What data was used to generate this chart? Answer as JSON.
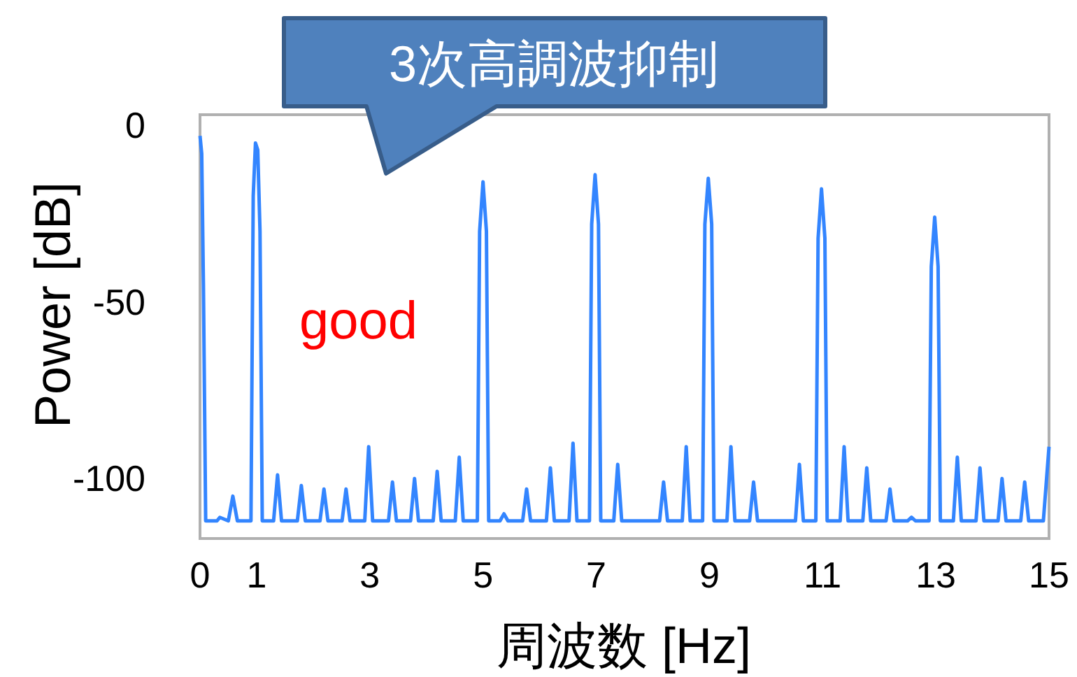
{
  "chart_data": {
    "type": "line",
    "xlabel": "周波数  [Hz]",
    "ylabel": "Power [dB]",
    "annotations": [
      "3次高調波抑制",
      "good"
    ],
    "xlim": [
      0,
      15
    ],
    "ylim": [
      -117,
      3
    ],
    "xticks": [
      0,
      1,
      3,
      5,
      7,
      9,
      11,
      13,
      15
    ],
    "yticks": [
      0,
      -50,
      -100
    ],
    "color": "#3385ff",
    "x": [
      0,
      0.03,
      0.06,
      0.1,
      0.3,
      0.35,
      0.5,
      0.58,
      0.66,
      0.9,
      0.94,
      0.98,
      1.02,
      1.06,
      1.1,
      1.3,
      1.37,
      1.44,
      1.72,
      1.79,
      1.86,
      2.12,
      2.19,
      2.26,
      2.51,
      2.58,
      2.65,
      2.91,
      2.98,
      3.05,
      3.33,
      3.4,
      3.47,
      3.72,
      3.79,
      3.86,
      4.12,
      4.19,
      4.26,
      4.51,
      4.58,
      4.65,
      4.9,
      4.94,
      5.0,
      5.06,
      5.1,
      5.3,
      5.37,
      5.44,
      5.7,
      5.77,
      5.84,
      6.12,
      6.19,
      6.26,
      6.52,
      6.59,
      6.66,
      6.88,
      6.92,
      6.98,
      7.04,
      7.08,
      7.31,
      7.38,
      7.45,
      8.12,
      8.19,
      8.26,
      8.52,
      8.59,
      8.66,
      8.88,
      8.92,
      8.98,
      9.04,
      9.08,
      9.31,
      9.38,
      9.45,
      9.71,
      9.78,
      9.85,
      10.52,
      10.59,
      10.66,
      10.88,
      10.92,
      10.98,
      11.04,
      11.08,
      11.31,
      11.38,
      11.45,
      11.71,
      11.78,
      11.85,
      12.12,
      12.19,
      12.26,
      12.5,
      12.57,
      12.64,
      12.88,
      12.92,
      12.98,
      13.04,
      13.08,
      13.31,
      13.38,
      13.45,
      13.71,
      13.78,
      13.85,
      14.1,
      14.17,
      14.24,
      14.5,
      14.57,
      14.64,
      14.9,
      15
    ],
    "values": [
      -3,
      -8,
      -45,
      -112,
      -112,
      -111,
      -112,
      -105,
      -112,
      -112,
      -20,
      -5,
      -7,
      -30,
      -112,
      -112,
      -99,
      -112,
      -112,
      -102,
      -112,
      -112,
      -103,
      -112,
      -112,
      -103,
      -112,
      -112,
      -91,
      -112,
      -112,
      -101,
      -112,
      -112,
      -100,
      -112,
      -112,
      -98,
      -112,
      -112,
      -94,
      -112,
      -112,
      -30,
      -16,
      -30,
      -112,
      -112,
      -110,
      -112,
      -112,
      -103,
      -112,
      -112,
      -97,
      -112,
      -112,
      -90,
      -112,
      -112,
      -28,
      -14,
      -28,
      -112,
      -112,
      -96,
      -112,
      -112,
      -101,
      -112,
      -112,
      -91,
      -112,
      -112,
      -28,
      -15,
      -28,
      -112,
      -112,
      -91,
      -112,
      -112,
      -101,
      -112,
      -112,
      -96,
      -112,
      -112,
      -32,
      -18,
      -32,
      -112,
      -112,
      -91,
      -112,
      -112,
      -97,
      -112,
      -112,
      -103,
      -112,
      -112,
      -111,
      -112,
      -112,
      -40,
      -26,
      -40,
      -112,
      -112,
      -94,
      -112,
      -112,
      -97,
      -112,
      -112,
      -100,
      -112,
      -112,
      -101,
      -112,
      -112,
      -91
    ]
  }
}
